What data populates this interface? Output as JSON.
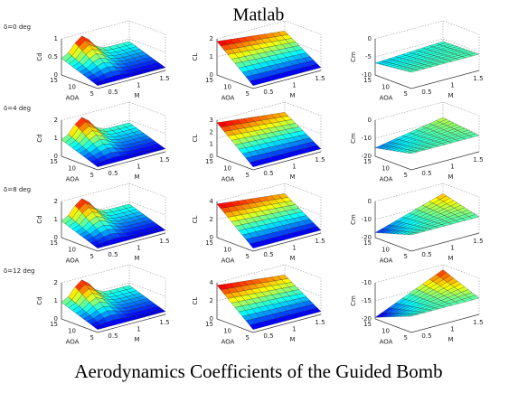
{
  "title": "Matlab",
  "footer": "Aerodynamics Coefficients of the Guided Bomb",
  "rows": [
    {
      "label": "δ=0 deg",
      "plots": [
        {
          "kind": "cd",
          "zlabel": "Cd",
          "zticks": [
            "1",
            "0.5",
            "0"
          ],
          "xlabel": "AOA",
          "xticks": [
            "15",
            "10",
            "5"
          ],
          "ylabel": "M",
          "yticks": [
            "0.5",
            "1",
            "1.5"
          ]
        },
        {
          "kind": "cl",
          "zlabel": "CL",
          "zticks": [
            "2",
            "1",
            "0"
          ],
          "xlabel": "AOA",
          "xticks": [
            "15",
            "10",
            "5"
          ],
          "ylabel": "M",
          "yticks": [
            "0.5",
            "1",
            "1.5"
          ]
        },
        {
          "kind": "cm",
          "zlabel": "Cm",
          "zticks": [
            "0",
            "-5",
            "-10"
          ],
          "xlabel": "AOA",
          "xticks": [
            "15",
            "10",
            "5"
          ],
          "ylabel": "M",
          "yticks": [
            "0.5",
            "1",
            "1.5"
          ]
        }
      ]
    },
    {
      "label": "δ=4 deg",
      "plots": [
        {
          "kind": "cd",
          "zlabel": "Cd",
          "zticks": [
            "2",
            "1",
            "0"
          ],
          "xlabel": "AOA",
          "xticks": [
            "15",
            "10",
            "5"
          ],
          "ylabel": "M",
          "yticks": [
            "0.5",
            "1",
            "1.5"
          ]
        },
        {
          "kind": "cl",
          "zlabel": "CL",
          "zticks": [
            "3",
            "2",
            "1",
            "0"
          ],
          "xlabel": "AOA",
          "xticks": [
            "15",
            "10",
            "5"
          ],
          "ylabel": "M",
          "yticks": [
            "0.5",
            "1",
            "1.5"
          ]
        },
        {
          "kind": "cm",
          "zlabel": "Cm",
          "zticks": [
            "0",
            "-10",
            "-20"
          ],
          "xlabel": "AOA",
          "xticks": [
            "15",
            "10",
            "5"
          ],
          "ylabel": "M",
          "yticks": [
            "0.5",
            "1",
            "1.5"
          ]
        }
      ]
    },
    {
      "label": "δ=8 deg",
      "plots": [
        {
          "kind": "cd",
          "zlabel": "Cd",
          "zticks": [
            "2",
            "1",
            "0"
          ],
          "xlabel": "AOA",
          "xticks": [
            "15",
            "10",
            "5"
          ],
          "ylabel": "M",
          "yticks": [
            "0.5",
            "1",
            "1.5"
          ]
        },
        {
          "kind": "cl",
          "zlabel": "CL",
          "zticks": [
            "4",
            "2",
            "0"
          ],
          "xlabel": "AOA",
          "xticks": [
            "15",
            "10",
            "5"
          ],
          "ylabel": "M",
          "yticks": [
            "0.5",
            "1",
            "1.5"
          ]
        },
        {
          "kind": "cm",
          "zlabel": "Cm",
          "zticks": [
            "0",
            "-10",
            "-20"
          ],
          "xlabel": "AOA",
          "xticks": [
            "15",
            "10",
            "5"
          ],
          "ylabel": "M",
          "yticks": [
            "0.5",
            "1",
            "1.5"
          ]
        }
      ]
    },
    {
      "label": "δ=12 deg",
      "plots": [
        {
          "kind": "cd",
          "zlabel": "Cd",
          "zticks": [
            "2",
            "1",
            "0"
          ],
          "xlabel": "AOA",
          "xticks": [
            "15",
            "10",
            "5"
          ],
          "ylabel": "M",
          "yticks": [
            "0.5",
            "1",
            "1.5"
          ]
        },
        {
          "kind": "cl",
          "zlabel": "CL",
          "zticks": [
            "4",
            "2",
            "0"
          ],
          "xlabel": "AOA",
          "xticks": [
            "15",
            "10",
            "5"
          ],
          "ylabel": "M",
          "yticks": [
            "0.5",
            "1",
            "1.5"
          ]
        },
        {
          "kind": "cm",
          "zlabel": "Cm",
          "zticks": [
            "-10",
            "-15",
            "-20"
          ],
          "xlabel": "AOA",
          "xticks": [
            "15",
            "10",
            "5"
          ],
          "ylabel": "M",
          "yticks": [
            "0.5",
            "1",
            "1.5"
          ]
        }
      ]
    }
  ]
}
